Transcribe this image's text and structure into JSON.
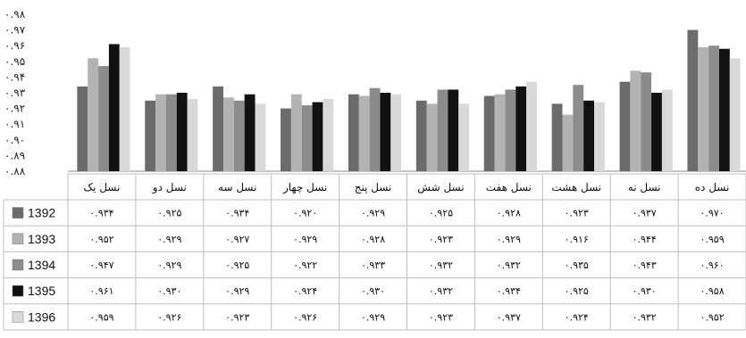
{
  "chart_data": {
    "type": "bar",
    "categories": [
      "نسل یک",
      "نسل دو",
      "نسل سه",
      "نسل چهار",
      "نسل پنج",
      "نسل شش",
      "نسل هفت",
      "نسل هشت",
      "نسل نه",
      "نسل ده"
    ],
    "y_ticks": [
      "۰.۹۸",
      "۰.۹۷",
      "۰.۹۶",
      "۰.۹۵",
      "۰.۹۴",
      "۰.۹۳",
      "۰.۹۲",
      "۰.۹۱",
      "۰.۹۰",
      "۰.۸۹",
      "۰.۸۸"
    ],
    "ylim": [
      0.88,
      0.98
    ],
    "series": [
      {
        "name": "1392",
        "color": "#6b6b6b",
        "values": [
          0.934,
          0.925,
          0.934,
          0.92,
          0.929,
          0.925,
          0.928,
          0.923,
          0.937,
          0.97
        ],
        "labels": [
          "۰.۹۳۴",
          "۰.۹۲۵",
          "۰.۹۳۴",
          "۰.۹۲۰",
          "۰.۹۲۹",
          "۰.۹۲۵",
          "۰.۹۲۸",
          "۰.۹۲۳",
          "۰.۹۳۷",
          "۰.۹۷۰"
        ]
      },
      {
        "name": "1393",
        "color": "#b3b3b3",
        "values": [
          0.952,
          0.929,
          0.927,
          0.929,
          0.928,
          0.923,
          0.929,
          0.916,
          0.944,
          0.959
        ],
        "labels": [
          "۰.۹۵۲",
          "۰.۹۲۹",
          "۰.۹۲۷",
          "۰.۹۲۹",
          "۰.۹۲۸",
          "۰.۹۲۳",
          "۰.۹۲۹",
          "۰.۹۱۶",
          "۰.۹۴۴",
          "۰.۹۵۹"
        ]
      },
      {
        "name": "1394",
        "color": "#8c8c8c",
        "values": [
          0.947,
          0.929,
          0.925,
          0.922,
          0.933,
          0.932,
          0.932,
          0.935,
          0.943,
          0.96
        ],
        "labels": [
          "۰.۹۴۷",
          "۰.۹۲۹",
          "۰.۹۲۵",
          "۰.۹۲۲",
          "۰.۹۳۳",
          "۰.۹۳۲",
          "۰.۹۳۲",
          "۰.۹۳۵",
          "۰.۹۴۳",
          "۰.۹۶۰"
        ]
      },
      {
        "name": "1395",
        "color": "#111111",
        "values": [
          0.961,
          0.93,
          0.929,
          0.924,
          0.93,
          0.932,
          0.934,
          0.925,
          0.93,
          0.958
        ],
        "labels": [
          "۰.۹۶۱",
          "۰.۹۳۰",
          "۰.۹۲۹",
          "۰.۹۲۴",
          "۰.۹۳۰",
          "۰.۹۳۲",
          "۰.۹۳۴",
          "۰.۹۲۵",
          "۰.۹۳۰",
          "۰.۹۵۸"
        ]
      },
      {
        "name": "1396",
        "color": "#d9d9d9",
        "values": [
          0.959,
          0.926,
          0.923,
          0.926,
          0.929,
          0.923,
          0.937,
          0.924,
          0.932,
          0.952
        ],
        "labels": [
          "۰.۹۵۹",
          "۰.۹۲۶",
          "۰.۹۲۳",
          "۰.۹۲۶",
          "۰.۹۲۹",
          "۰.۹۲۳",
          "۰.۹۳۷",
          "۰.۹۲۴",
          "۰.۹۳۲",
          "۰.۹۵۲"
        ]
      }
    ],
    "grid": false,
    "legend": "table-left",
    "title": "",
    "xlabel": "",
    "ylabel": ""
  }
}
